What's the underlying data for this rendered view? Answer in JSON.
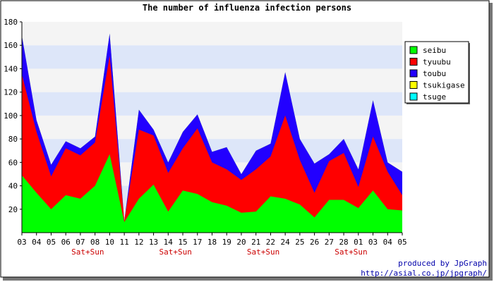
{
  "chart_data": {
    "type": "area",
    "stacked": true,
    "title": "The number of influenza infection persons",
    "categories": [
      "03",
      "04",
      "05",
      "06",
      "07",
      "08",
      "10",
      "11",
      "12",
      "13",
      "14",
      "15",
      "17",
      "18",
      "19",
      "20",
      "21",
      "22",
      "24",
      "25",
      "26",
      "27",
      "28",
      "01",
      "03",
      "04",
      "05"
    ],
    "x_annotations": [
      {
        "category_index": 4,
        "text": "Sat+Sun"
      },
      {
        "category_index": 10,
        "text": "Sat+Sun"
      },
      {
        "category_index": 16,
        "text": "Sat+Sun"
      },
      {
        "category_index": 22,
        "text": "Sat+Sun"
      }
    ],
    "ylim": [
      0,
      180
    ],
    "yticks": [
      20,
      40,
      60,
      80,
      100,
      120,
      140,
      160,
      180
    ],
    "grid": true,
    "legend_position": "right",
    "series": [
      {
        "name": "seibu",
        "color": "#00ff00",
        "values": [
          49,
          34,
          20,
          32,
          29,
          40,
          67,
          9,
          29,
          41,
          18,
          36,
          33,
          26,
          23,
          17,
          18,
          31,
          29,
          24,
          13,
          28,
          28,
          21,
          36,
          20,
          19
        ]
      },
      {
        "name": "tyuubu",
        "color": "#ff0000",
        "values": [
          86,
          52,
          28,
          40,
          37,
          37,
          84,
          1,
          59,
          42,
          33,
          36,
          56,
          34,
          31,
          28,
          36,
          34,
          71,
          38,
          21,
          33,
          40,
          18,
          46,
          32,
          13
        ]
      },
      {
        "name": "toubu",
        "color": "#2200ff",
        "values": [
          33,
          10,
          10,
          6,
          6,
          5,
          19,
          0,
          17,
          5,
          9,
          14,
          12,
          9,
          19,
          5,
          16,
          11,
          37,
          18,
          25,
          6,
          12,
          15,
          31,
          8,
          20
        ]
      },
      {
        "name": "tsukigase",
        "color": "#ffff00",
        "values": [
          0,
          0,
          0,
          0,
          0,
          0,
          0,
          0,
          0,
          0,
          0,
          0,
          0,
          0,
          0,
          0,
          0,
          0,
          0,
          0,
          0,
          0,
          0,
          0,
          0,
          0,
          0
        ]
      },
      {
        "name": "tsuge",
        "color": "#00ffff",
        "values": [
          0,
          0,
          0,
          0,
          0,
          0,
          0,
          0,
          0,
          0,
          0,
          0,
          0,
          0,
          0,
          0,
          0,
          0,
          0,
          0,
          0,
          0,
          0,
          0,
          0,
          0,
          0
        ]
      }
    ],
    "band_colors": [
      "#f4f4f4",
      "#dde6f9"
    ],
    "footer": [
      "produced by JpGraph",
      "http://asial.co.jp/jpgraph/"
    ],
    "footer_color": "#0000aa",
    "annotation_color": "#cc0000"
  }
}
